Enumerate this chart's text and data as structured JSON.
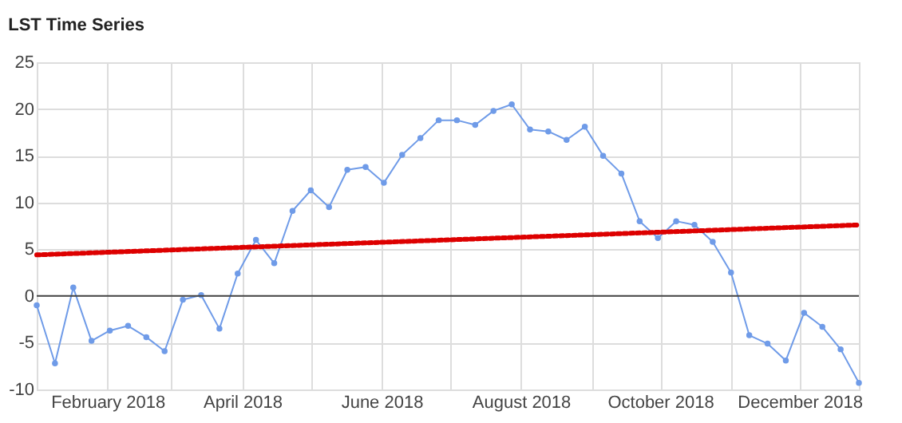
{
  "chart_data": {
    "type": "line",
    "title": "LST  Time Series",
    "x": [
      "2018-01-01",
      "2018-01-09",
      "2018-01-17",
      "2018-01-25",
      "2018-02-02",
      "2018-02-10",
      "2018-02-18",
      "2018-02-26",
      "2018-03-06",
      "2018-03-14",
      "2018-03-22",
      "2018-03-30",
      "2018-04-07",
      "2018-04-15",
      "2018-04-23",
      "2018-05-01",
      "2018-05-09",
      "2018-05-17",
      "2018-05-25",
      "2018-06-02",
      "2018-06-10",
      "2018-06-18",
      "2018-06-26",
      "2018-07-04",
      "2018-07-12",
      "2018-07-20",
      "2018-07-28",
      "2018-08-05",
      "2018-08-13",
      "2018-08-21",
      "2018-08-29",
      "2018-09-06",
      "2018-09-14",
      "2018-09-22",
      "2018-09-30",
      "2018-10-08",
      "2018-10-16",
      "2018-10-24",
      "2018-11-01",
      "2018-11-09",
      "2018-11-17",
      "2018-11-25",
      "2018-12-03",
      "2018-12-11",
      "2018-12-19",
      "2018-12-27"
    ],
    "series": [
      {
        "color": "#6f9be8",
        "marker": "circle",
        "line_style": "solid",
        "values": [
          -1.0,
          -7.2,
          0.9,
          -4.8,
          -3.7,
          -3.2,
          -4.4,
          -5.9,
          -0.4,
          0.1,
          -3.5,
          2.4,
          6.0,
          3.5,
          9.1,
          11.3,
          9.5,
          13.5,
          13.8,
          12.1,
          15.1,
          16.9,
          18.8,
          18.8,
          18.3,
          19.8,
          20.5,
          17.8,
          17.6,
          16.7,
          18.1,
          15.0,
          13.1,
          8.0,
          6.2,
          8.0,
          7.6,
          5.8,
          2.5,
          -4.2,
          -5.1,
          -6.9,
          -1.8,
          -3.3,
          -5.7,
          -9.3
        ]
      },
      {
        "color": "#dd0000",
        "marker": "none",
        "line_style": "dotted",
        "x": [
          "2018-01-01",
          "2018-12-27"
        ],
        "values": [
          4.4,
          7.6
        ]
      }
    ],
    "xlim": [
      "2018-01-01",
      "2018-12-27"
    ],
    "xticks": [
      {
        "value": "2018-01-01",
        "label": null
      },
      {
        "value": "2018-02-01",
        "label": "February 2018"
      },
      {
        "value": "2018-03-01",
        "label": null
      },
      {
        "value": "2018-04-01",
        "label": "April 2018"
      },
      {
        "value": "2018-05-01",
        "label": null
      },
      {
        "value": "2018-06-01",
        "label": "June 2018"
      },
      {
        "value": "2018-07-01",
        "label": null
      },
      {
        "value": "2018-08-01",
        "label": "August 2018"
      },
      {
        "value": "2018-09-01",
        "label": null
      },
      {
        "value": "2018-10-01",
        "label": "October 2018"
      },
      {
        "value": "2018-11-01",
        "label": null
      },
      {
        "value": "2018-12-01",
        "label": "December 2018"
      }
    ],
    "ylim": [
      -10,
      25
    ],
    "yticks": [
      -10,
      -5,
      0,
      5,
      10,
      15,
      20,
      25
    ],
    "ref_lines": [
      {
        "axis": "y",
        "value": 0,
        "color": "#444444"
      }
    ],
    "grid": true
  }
}
